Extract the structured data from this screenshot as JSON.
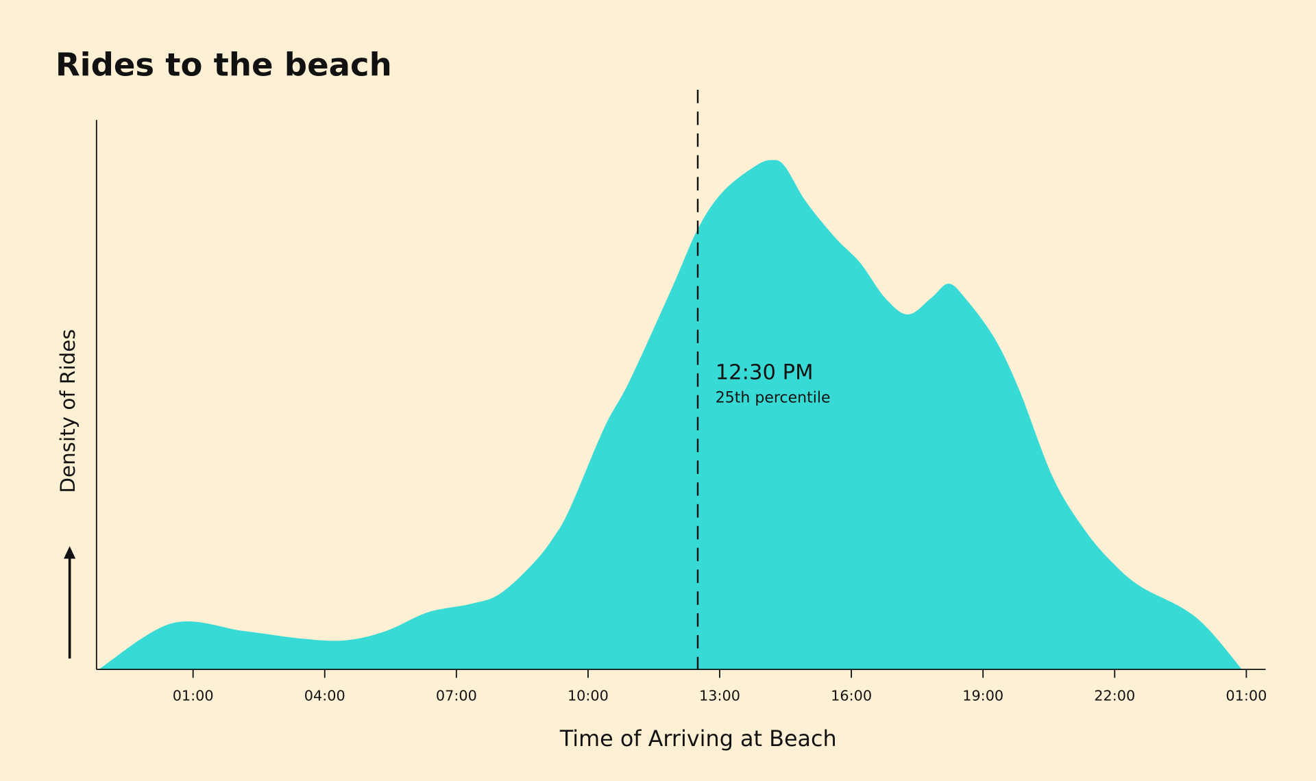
{
  "chart_data": {
    "type": "area",
    "title": "Rides to the beach",
    "xlabel": "Time of Arriving at Beach",
    "ylabel": "Density of Rides",
    "color": "#38dad5",
    "x": [
      -1.15,
      0.52,
      2.15,
      3.49,
      4.48,
      5.4,
      6.35,
      7.31,
      7.98,
      8.74,
      9.22,
      9.6,
      10.37,
      10.94,
      11.9,
      12.51,
      13.08,
      13.81,
      14.19,
      14.48,
      14.96,
      15.63,
      16.2,
      16.77,
      17.29,
      17.82,
      18.21,
      18.59,
      19.26,
      19.83,
      20.6,
      21.36,
      22.03,
      22.61,
      23.56,
      24.14,
      24.9
    ],
    "values": [
      0,
      8.4,
      7.0,
      5.6,
      5.3,
      7.0,
      10.4,
      11.9,
      13.7,
      19.2,
      24.1,
      29.5,
      44.0,
      52.4,
      69.2,
      80.3,
      87.0,
      91.6,
      92.7,
      91.6,
      85.2,
      78.6,
      74.0,
      67.6,
      64.6,
      67.6,
      70.2,
      67.6,
      60.3,
      50.8,
      34.8,
      24.9,
      18.8,
      15.0,
      11.1,
      7.3,
      0
    ],
    "xlim": [
      -1.2,
      25.44
    ],
    "ylim": [
      0,
      100
    ],
    "xticks": [
      {
        "value": 1,
        "label": "01:00"
      },
      {
        "value": 4,
        "label": "04:00"
      },
      {
        "value": 7,
        "label": "07:00"
      },
      {
        "value": 10,
        "label": "10:00"
      },
      {
        "value": 13,
        "label": "13:00"
      },
      {
        "value": 16,
        "label": "16:00"
      },
      {
        "value": 19,
        "label": "19:00"
      },
      {
        "value": 22,
        "label": "22:00"
      },
      {
        "value": 25,
        "label": "01:00"
      }
    ],
    "annotation": {
      "x": 12.5,
      "label": "12:30 PM",
      "sublabel": "25th percentile"
    }
  }
}
